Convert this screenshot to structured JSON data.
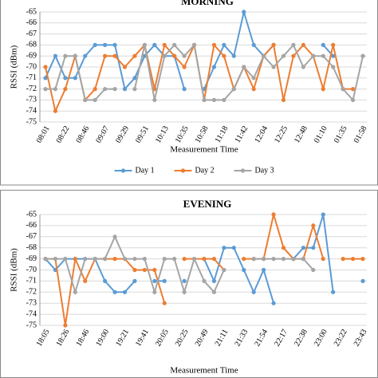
{
  "chart_data": [
    {
      "type": "line",
      "title": "MORNING",
      "ylabel": "RSSI (dBm)",
      "xlabel": "Measurement Time",
      "categories": [
        "08:01",
        null,
        "08:22",
        null,
        "08:46",
        null,
        "09:07",
        null,
        "09:29",
        null,
        "09:51",
        null,
        "10:13",
        null,
        "10:35",
        null,
        "10:58",
        null,
        "11:18",
        null,
        "11:42",
        null,
        "12:04",
        null,
        "12:25",
        null,
        "12:48",
        null,
        "01:10",
        null,
        "01:35",
        null,
        "01:58"
      ],
      "ylim": [
        -75,
        -65
      ],
      "yticks": [
        -65,
        -66,
        -67,
        -68,
        -69,
        -70,
        -71,
        -72,
        -73,
        -74,
        -75
      ],
      "grid": true,
      "legend": "bottom",
      "series": [
        {
          "name": "Day 1",
          "color": "#5b9bd5",
          "values": [
            -71,
            -69,
            -71,
            -71,
            -69,
            -68,
            -68,
            -68,
            -72,
            -71,
            -69,
            -68,
            -69,
            -69,
            -72,
            null,
            -72,
            -70,
            -68,
            -69,
            -65,
            -68,
            -69,
            -68,
            null,
            null,
            null,
            null,
            -68,
            -69,
            null,
            null,
            -69
          ]
        },
        {
          "name": "Day 2",
          "color": "#ed7d31",
          "values": [
            -70,
            -74,
            -72,
            -69,
            -73,
            -72,
            -69,
            -69,
            -70,
            -69,
            -68,
            -72,
            -68,
            -69,
            -70,
            -68,
            -73,
            -68,
            -69,
            -72,
            -70,
            -72,
            -69,
            -68,
            -73,
            -69,
            -68,
            -69,
            -72,
            -68,
            -72,
            -72,
            null
          ]
        },
        {
          "name": "Day 3",
          "color": "#a5a5a5",
          "values": [
            -72,
            -72,
            -69,
            -69,
            -73,
            -73,
            -72,
            -72,
            null,
            -72,
            -68,
            -73,
            -69,
            -68,
            -69,
            -68,
            -73,
            -73,
            -73,
            -72,
            -70,
            -71,
            -69,
            -70,
            -69,
            -68,
            -70,
            -69,
            -69,
            -70,
            -72,
            -73,
            -69
          ]
        }
      ]
    },
    {
      "type": "line",
      "title": "EVENING",
      "ylabel": "RSSI (dBm)",
      "xlabel": "Measurement Time",
      "categories": [
        "18:05",
        null,
        "18:26",
        null,
        "18:46",
        null,
        "19:00",
        null,
        "19:21",
        null,
        "19:41",
        null,
        "20:05",
        null,
        "20:25",
        null,
        "20:49",
        null,
        "21:11",
        null,
        "21:33",
        null,
        "21:54",
        null,
        "22:17",
        null,
        "22:38",
        null,
        "23:00",
        null,
        "23:22",
        null,
        "23:43"
      ],
      "ylim": [
        -75,
        -65
      ],
      "yticks": [
        -65,
        -66,
        -67,
        -68,
        -69,
        -70,
        -71,
        -72,
        -73,
        -74,
        -75
      ],
      "grid": true,
      "legend": "none",
      "series": [
        {
          "name": "Day 1",
          "color": "#5b9bd5",
          "values": [
            -69,
            -70,
            -69,
            -69,
            -69,
            -69,
            -71,
            -72,
            -72,
            -71,
            null,
            -71,
            -71,
            null,
            -71,
            null,
            -69,
            -71,
            -68,
            -68,
            -70,
            -72,
            -70,
            -73,
            null,
            -69,
            -68,
            -68,
            -65,
            -72,
            null,
            null,
            -71
          ]
        },
        {
          "name": "Day 2",
          "color": "#ed7d31",
          "values": [
            -69,
            -69,
            -75,
            -69,
            -71,
            -69,
            -69,
            -69,
            -69,
            -70,
            -70,
            -70,
            -73,
            null,
            -69,
            -69,
            -69,
            -69,
            -70,
            null,
            -69,
            -69,
            -69,
            -65,
            -68,
            -69,
            -69,
            -66,
            -69,
            null,
            -69,
            -69,
            -69
          ]
        },
        {
          "name": "Day 3",
          "color": "#a5a5a5",
          "values": [
            -69,
            -69,
            -69,
            -72,
            -69,
            -69,
            -69,
            -67,
            -69,
            -69,
            -69,
            -72,
            -69,
            -69,
            -72,
            -69,
            -71,
            -72,
            -70,
            null,
            null,
            -69,
            -69,
            -69,
            -69,
            -69,
            -69,
            -70,
            null,
            null,
            null,
            null,
            null
          ]
        }
      ]
    }
  ]
}
